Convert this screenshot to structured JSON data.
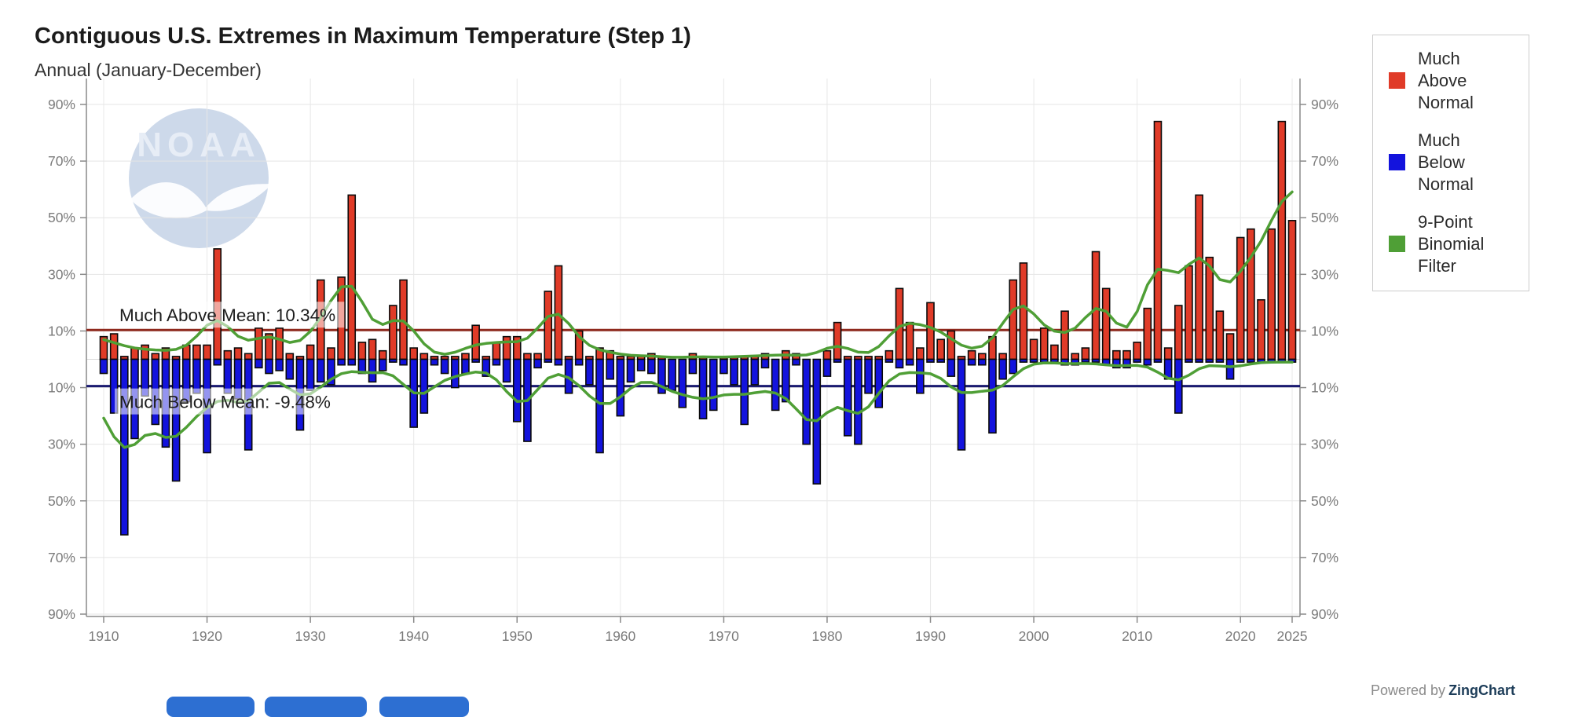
{
  "header": {
    "title": "Contiguous U.S. Extremes in Maximum Temperature (Step 1)",
    "subtitle": "Annual (January-December)"
  },
  "watermark": {
    "text": "NOAA"
  },
  "legend": {
    "position": "right",
    "items": [
      {
        "label": "Much Above Normal",
        "lines": [
          "Much",
          "Above",
          "Normal"
        ],
        "color": "#e03b28"
      },
      {
        "label": "Much Below Normal",
        "lines": [
          "Much",
          "Below",
          "Normal"
        ],
        "color": "#1313dd"
      },
      {
        "label": "9-Point Binomial Filter",
        "lines": [
          "9-Point",
          "Binomial",
          "Filter"
        ],
        "color": "#4f9f36"
      }
    ]
  },
  "footer": {
    "powered_by": "Powered by",
    "brand": "ZingChart"
  },
  "ui": {
    "button_color": "#2d6fd2"
  },
  "bottom_buttons": [
    {
      "label": ""
    },
    {
      "label": ""
    },
    {
      "label": ""
    }
  ],
  "chart_data": {
    "type": "bar",
    "title": "Contiguous U.S. Extremes in Maximum Temperature (Step 1)",
    "subtitle": "Annual (January-December)",
    "xlabel": "",
    "ylabel": "",
    "x_start_year": 1910,
    "x_end_year": 2025,
    "x_tick_labels": [
      1910,
      1920,
      1930,
      1940,
      1950,
      1960,
      1970,
      1980,
      1990,
      2000,
      2010,
      2020,
      2025
    ],
    "y_axis": {
      "tick_percents": [
        90,
        70,
        50,
        30,
        10,
        -10,
        -30,
        -50,
        -70,
        -90
      ],
      "label_suffix": "%",
      "ylim": [
        -90,
        90
      ],
      "mirrored_right_axis": true
    },
    "grid": true,
    "legend_position": "right",
    "series": [
      {
        "name": "Much Above Normal",
        "color": "#e03b28",
        "direction": "up",
        "values": [
          8,
          9,
          1,
          4,
          5,
          2,
          4,
          1,
          5,
          5,
          5,
          39,
          3,
          4,
          2,
          11,
          9,
          11,
          2,
          1,
          5,
          28,
          4,
          29,
          58,
          6,
          7,
          3,
          19,
          28,
          4,
          2,
          1,
          1,
          1,
          2,
          12,
          1,
          6,
          8,
          8,
          2,
          2,
          24,
          33,
          1,
          10,
          1,
          4,
          3,
          1,
          1,
          1,
          2,
          1,
          0,
          0,
          2,
          1,
          0,
          1,
          1,
          1,
          1,
          2,
          0,
          3,
          2,
          0,
          0,
          3,
          13,
          1,
          1,
          1,
          1,
          3,
          25,
          13,
          4,
          20,
          7,
          10,
          1,
          3,
          2,
          8,
          2,
          28,
          34,
          7,
          11,
          5,
          17,
          2,
          4,
          38,
          25,
          3,
          3,
          6,
          18,
          84,
          4,
          19,
          33,
          58,
          36,
          17,
          9,
          43,
          46,
          21,
          46,
          84,
          49
        ]
      },
      {
        "name": "Much Below Normal",
        "color": "#1313dd",
        "direction": "down",
        "values": [
          -5,
          -19,
          -62,
          -28,
          -13,
          -23,
          -31,
          -43,
          -15,
          -12,
          -33,
          -2,
          -12,
          -14,
          -32,
          -3,
          -5,
          -4,
          -7,
          -25,
          -11,
          -8,
          -9,
          -2,
          -2,
          -5,
          -8,
          -4,
          -1,
          -2,
          -24,
          -19,
          -2,
          -5,
          -10,
          -5,
          -1,
          -6,
          -2,
          -8,
          -22,
          -29,
          -3,
          -1,
          -2,
          -12,
          -2,
          -9,
          -33,
          -7,
          -20,
          -8,
          -4,
          -5,
          -12,
          -11,
          -17,
          -5,
          -21,
          -18,
          -5,
          -9,
          -23,
          -9,
          -3,
          -18,
          -15,
          -2,
          -30,
          -44,
          -6,
          -1,
          -27,
          -30,
          -12,
          -17,
          -1,
          -3,
          -2,
          -12,
          -1,
          -1,
          -6,
          -32,
          -2,
          -2,
          -26,
          -7,
          -5,
          -1,
          -1,
          -1,
          -1,
          -2,
          -2,
          -1,
          -1,
          -2,
          -3,
          -3,
          -1,
          -2,
          -1,
          -7,
          -19,
          -1,
          -1,
          -1,
          -1,
          -7,
          -1,
          -1,
          -1,
          -1,
          -1,
          -1
        ]
      },
      {
        "name": "9-Point Binomial Filter",
        "color": "#4f9f36",
        "type": "line",
        "derived": "9-point binomial smoothing applied to both bar series"
      }
    ],
    "mean_lines": {
      "above": {
        "value": 10.34,
        "label": "Much Above Mean: 10.34%",
        "color": "#8f291d"
      },
      "below": {
        "value": -9.48,
        "label": "Much Below Mean: -9.48%",
        "color": "#1a1a70"
      }
    }
  }
}
